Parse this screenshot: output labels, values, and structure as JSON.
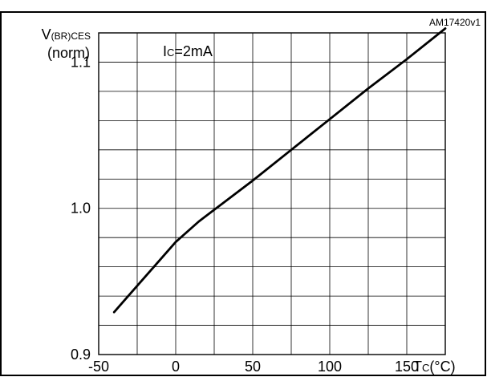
{
  "figure_id": "AM17420v1",
  "chart_data": {
    "type": "line",
    "title": "",
    "ylabel_main": "V",
    "ylabel_sub": "(BR)CES",
    "ylabel_unit": "(norm)",
    "xlabel_main": "T",
    "xlabel_sub": "C",
    "xlabel_unit": "(°C)",
    "annotation_main": "I",
    "annotation_sub": "C",
    "annotation_value": "=2mA",
    "xlim": [
      -50,
      175
    ],
    "ylim": [
      0.9,
      1.12
    ],
    "x_ticks": [
      -50,
      0,
      50,
      100,
      150
    ],
    "x_tick_labels": [
      "-50",
      "0",
      "50",
      "100",
      "150"
    ],
    "y_ticks": [
      0.9,
      1.0,
      1.1
    ],
    "y_tick_labels": [
      "0.9",
      "1.0",
      "1.1"
    ],
    "x_grid": [
      -50,
      -25,
      0,
      25,
      50,
      75,
      100,
      125,
      150,
      175
    ],
    "y_grid": [
      0.9,
      0.92,
      0.94,
      0.96,
      0.98,
      1.0,
      1.02,
      1.04,
      1.06,
      1.08,
      1.1,
      1.12
    ],
    "grid": true,
    "series": [
      {
        "color": "#000000",
        "x": [
          -40,
          -25,
          -10,
          0,
          15,
          25,
          50,
          75,
          100,
          125,
          150,
          175
        ],
        "y": [
          0.929,
          0.947,
          0.965,
          0.977,
          0.991,
          0.999,
          1.019,
          1.04,
          1.061,
          1.082,
          1.102,
          1.123
        ]
      }
    ]
  }
}
